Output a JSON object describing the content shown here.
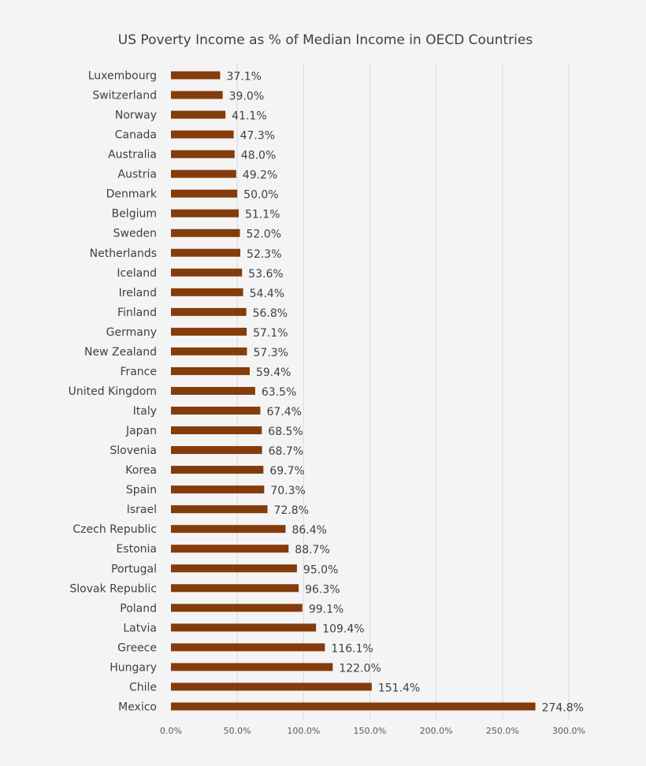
{
  "colors": {
    "background": "#f4f4f4",
    "bar": "#843c0c",
    "gridline": "#d9d9d9",
    "text": "#404040",
    "tick_text": "#595959"
  },
  "chart_data": {
    "type": "bar",
    "orientation": "horizontal",
    "title": "US Poverty Income as % of Median Income in OECD Countries",
    "xlabel": "",
    "ylabel": "",
    "xlim": [
      0,
      300
    ],
    "grid": "vertical",
    "legend": "none",
    "categories": [
      "Luxembourg",
      "Switzerland",
      "Norway",
      "Canada",
      "Australia",
      "Austria",
      "Denmark",
      "Belgium",
      "Sweden",
      "Netherlands",
      "Iceland",
      "Ireland",
      "Finland",
      "Germany",
      "New Zealand",
      "France",
      "United Kingdom",
      "Italy",
      "Japan",
      "Slovenia",
      "Korea",
      "Spain",
      "Israel",
      "Czech Republic",
      "Estonia",
      "Portugal",
      "Slovak Republic",
      "Poland",
      "Latvia",
      "Greece",
      "Hungary",
      "Chile",
      "Mexico"
    ],
    "values": [
      37.1,
      39.0,
      41.1,
      47.3,
      48.0,
      49.2,
      50.0,
      51.1,
      52.0,
      52.3,
      53.6,
      54.4,
      56.8,
      57.1,
      57.3,
      59.4,
      63.5,
      67.4,
      68.5,
      68.7,
      69.7,
      70.3,
      72.8,
      86.4,
      88.7,
      95.0,
      96.3,
      99.1,
      109.4,
      116.1,
      122.0,
      151.4,
      274.8
    ],
    "data_labels": [
      "37.1%",
      "39.0%",
      "41.1%",
      "47.3%",
      "48.0%",
      "49.2%",
      "50.0%",
      "51.1%",
      "52.0%",
      "52.3%",
      "53.6%",
      "54.4%",
      "56.8%",
      "57.1%",
      "57.3%",
      "59.4%",
      "63.5%",
      "67.4%",
      "68.5%",
      "68.7%",
      "69.7%",
      "70.3%",
      "72.8%",
      "86.4%",
      "88.7%",
      "95.0%",
      "96.3%",
      "99.1%",
      "109.4%",
      "116.1%",
      "122.0%",
      "151.4%",
      "274.8%"
    ],
    "x_ticks": [
      0,
      50,
      100,
      150,
      200,
      250,
      300
    ],
    "x_tick_labels": [
      "0.0%",
      "50.0%",
      "100.0%",
      "150.0%",
      "200.0%",
      "250.0%",
      "300.0%"
    ]
  }
}
